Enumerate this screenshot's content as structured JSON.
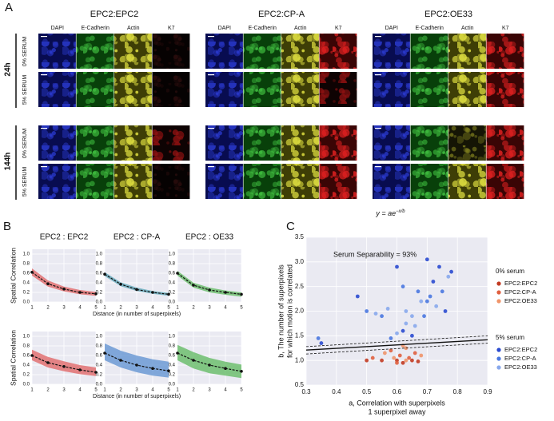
{
  "panel_labels": [
    "A",
    "B",
    "C"
  ],
  "figure_a": {
    "groups": [
      {
        "title": "EPC2:EPC2",
        "channels": [
          "DAPI",
          "E-Cadherin",
          "Actin",
          "K7"
        ]
      },
      {
        "title": "EPC2:CP-A",
        "channels": [
          "DAPI",
          "E-Cadherin",
          "Actin",
          "K7"
        ]
      },
      {
        "title": "EPC2:OE33",
        "channels": [
          "DAPI",
          "E-Cadherin",
          "Actin",
          "K7"
        ]
      }
    ],
    "times": [
      {
        "label": "24h",
        "conditions": [
          "0% SERUM",
          "5% SERUM"
        ]
      },
      {
        "label": "144h",
        "conditions": [
          "0% SERUM",
          "5% SERUM"
        ]
      }
    ]
  },
  "chart_data": [
    {
      "type": "line",
      "title": "EPC2 : EPC2",
      "title_color": "#e05050",
      "ylabel": "Spatial Correlation",
      "x": [
        1,
        2,
        3,
        4,
        5
      ],
      "values": [
        0.62,
        0.38,
        0.27,
        0.2,
        0.17
      ],
      "lower": [
        0.55,
        0.32,
        0.22,
        0.16,
        0.13
      ],
      "upper": [
        0.7,
        0.45,
        0.32,
        0.25,
        0.21
      ],
      "color": "#e06060",
      "xlim": [
        1,
        5
      ],
      "xticks": [
        1,
        2,
        3,
        4,
        5
      ],
      "ylim": [
        0,
        1.1
      ],
      "yticks": [
        {
          "value": 0,
          "label": "0.0"
        },
        0.2,
        0.4,
        0.6,
        0.8,
        {
          "value": 1,
          "label": "1.0"
        }
      ],
      "grid": true
    },
    {
      "type": "line",
      "title": "EPC2 : CP-A",
      "title_color": "#6a9fd0",
      "xlabel": "Distance (in number of superpixels)",
      "x": [
        1,
        2,
        3,
        4,
        5
      ],
      "values": [
        0.58,
        0.37,
        0.26,
        0.2,
        0.16
      ],
      "lower": [
        0.54,
        0.33,
        0.23,
        0.17,
        0.13
      ],
      "upper": [
        0.62,
        0.41,
        0.3,
        0.23,
        0.19
      ],
      "color": "#5aa6b8",
      "xlim": [
        1,
        5
      ],
      "xticks": [
        1,
        2,
        3,
        4,
        5
      ],
      "ylim": [
        0,
        1.1
      ],
      "yticks": [
        {
          "value": 0,
          "label": "0.0"
        },
        0.2,
        0.4,
        0.6,
        0.8,
        {
          "value": 1,
          "label": "1.0"
        }
      ],
      "grid": true
    },
    {
      "type": "line",
      "title": "EPC2 : OE33",
      "title_color": "#7cc27c",
      "x": [
        1,
        2,
        3,
        4,
        5
      ],
      "values": [
        0.6,
        0.35,
        0.25,
        0.2,
        0.16
      ],
      "lower": [
        0.55,
        0.3,
        0.2,
        0.15,
        0.11
      ],
      "upper": [
        0.65,
        0.4,
        0.3,
        0.24,
        0.2
      ],
      "color": "#5cb85c",
      "xlim": [
        1,
        5
      ],
      "xticks": [
        1,
        2,
        3,
        4,
        5
      ],
      "ylim": [
        0,
        1.1
      ],
      "yticks": [
        {
          "value": 0,
          "label": "0.0"
        },
        0.2,
        0.4,
        0.6,
        0.8,
        {
          "value": 1,
          "label": "1.0"
        }
      ],
      "grid": true
    },
    {
      "type": "line",
      "ylabel": "Spatial Correlation",
      "x": [
        1,
        2,
        3,
        4,
        5
      ],
      "values": [
        0.6,
        0.45,
        0.37,
        0.3,
        0.25
      ],
      "lower": [
        0.5,
        0.35,
        0.27,
        0.21,
        0.17
      ],
      "upper": [
        0.72,
        0.57,
        0.48,
        0.4,
        0.35
      ],
      "color": "#e06060",
      "xlim": [
        1,
        5
      ],
      "xticks": [
        1,
        2,
        3,
        4,
        5
      ],
      "ylim": [
        0,
        1.1
      ],
      "yticks": [
        {
          "value": 0,
          "label": "0.0"
        },
        0.2,
        0.4,
        0.6,
        0.8,
        {
          "value": 1,
          "label": "1.0"
        }
      ],
      "grid": true
    },
    {
      "type": "line",
      "xlabel": "Distance (in number of superpixels)",
      "x": [
        1,
        2,
        3,
        4,
        5
      ],
      "values": [
        0.65,
        0.5,
        0.4,
        0.33,
        0.28
      ],
      "lower": [
        0.5,
        0.35,
        0.25,
        0.18,
        0.14
      ],
      "upper": [
        0.85,
        0.7,
        0.6,
        0.52,
        0.47
      ],
      "color": "#5b8fd0",
      "xlim": [
        1,
        5
      ],
      "xticks": [
        1,
        2,
        3,
        4,
        5
      ],
      "ylim": [
        0,
        1.1
      ],
      "yticks": [
        {
          "value": 0,
          "label": "0.0"
        },
        0.2,
        0.4,
        0.6,
        0.8,
        {
          "value": 1,
          "label": "1.0"
        }
      ],
      "grid": true
    },
    {
      "type": "line",
      "x": [
        1,
        2,
        3,
        4,
        5
      ],
      "values": [
        0.65,
        0.5,
        0.4,
        0.33,
        0.27
      ],
      "lower": [
        0.5,
        0.33,
        0.23,
        0.18,
        0.13
      ],
      "upper": [
        0.82,
        0.67,
        0.55,
        0.47,
        0.41
      ],
      "color": "#5cb85c",
      "xlim": [
        1,
        5
      ],
      "xticks": [
        1,
        2,
        3,
        4,
        5
      ],
      "ylim": [
        0,
        1.1
      ],
      "yticks": [
        {
          "value": 0,
          "label": "0.0"
        },
        0.2,
        0.4,
        0.6,
        0.8,
        {
          "value": 1,
          "label": "1.0"
        }
      ],
      "grid": true
    },
    {
      "type": "scatter",
      "title": "y = ae",
      "title_exponent": "−x/b",
      "annotation": "Serum Separability = 93%",
      "xlabel": [
        "a, Correlation with superpixels",
        "1 superpixel away"
      ],
      "ylabel": [
        "b, The number of superpixels",
        "for which motion is correlated"
      ],
      "xlim": [
        0.3,
        0.9
      ],
      "xticks": [
        0.3,
        0.4,
        0.5,
        0.6,
        0.7,
        0.8,
        0.9
      ],
      "ylim": [
        0.5,
        3.5
      ],
      "yticks": [
        0.5,
        {
          "value": 1,
          "label": "1.0"
        },
        1.5,
        {
          "value": 2,
          "label": "2.0"
        },
        2.5,
        {
          "value": 3,
          "label": "3.0"
        },
        3.5
      ],
      "grid": true,
      "series_groups": [
        {
          "name": "0% serum",
          "series": [
            {
              "name": "EPC2:EPC2",
              "color": "#c23b22",
              "x": [
                0.5,
                0.55,
                0.6,
                0.62,
                0.65,
                0.67
              ],
              "y": [
                1.0,
                1.0,
                1.0,
                0.95,
                1.0,
                0.98
              ]
            },
            {
              "name": "EPC2:CP-A",
              "color": "#e0603f",
              "x": [
                0.52,
                0.58,
                0.61,
                0.64,
                0.66,
                0.6
              ],
              "y": [
                1.05,
                1.2,
                1.1,
                1.05,
                1.15,
                0.95
              ]
            },
            {
              "name": "EPC2:OE33",
              "color": "#f0956a",
              "x": [
                0.56,
                0.59,
                0.63,
                0.62,
                0.68,
                0.63
              ],
              "y": [
                1.15,
                1.05,
                1.25,
                1.3,
                1.1,
                1.0
              ]
            }
          ]
        },
        {
          "name": "5% serum",
          "series": [
            {
              "name": "EPC2:EPC2",
              "color": "#2b4bd0",
              "x": [
                0.35,
                0.47,
                0.6,
                0.7,
                0.74,
                0.78,
                0.62,
                0.65,
                0.72,
                0.76
              ],
              "y": [
                1.35,
                2.3,
                2.9,
                3.05,
                2.9,
                2.8,
                1.6,
                1.5,
                2.6,
                2.0
              ]
            },
            {
              "name": "EPC2:CP-A",
              "color": "#4a78e0",
              "x": [
                0.34,
                0.5,
                0.55,
                0.62,
                0.67,
                0.75,
                0.7,
                0.58,
                0.69,
                0.71
              ],
              "y": [
                1.45,
                2.0,
                1.9,
                2.5,
                2.4,
                2.4,
                2.2,
                1.45,
                1.9,
                2.3
              ]
            },
            {
              "name": "EPC2:OE33",
              "color": "#88a8ec",
              "x": [
                0.53,
                0.57,
                0.63,
                0.65,
                0.68,
                0.73,
                0.77,
                0.6,
                0.63,
                0.66
              ],
              "y": [
                1.95,
                2.05,
                2.0,
                1.9,
                2.2,
                2.1,
                2.7,
                1.55,
                1.75,
                1.7
              ]
            }
          ]
        }
      ],
      "fit": {
        "x": [
          0.3,
          0.9
        ],
        "values": [
          1.21,
          1.42
        ],
        "lower": [
          1.13,
          1.35
        ],
        "upper": [
          1.28,
          1.5
        ],
        "color": "#111111"
      }
    }
  ]
}
